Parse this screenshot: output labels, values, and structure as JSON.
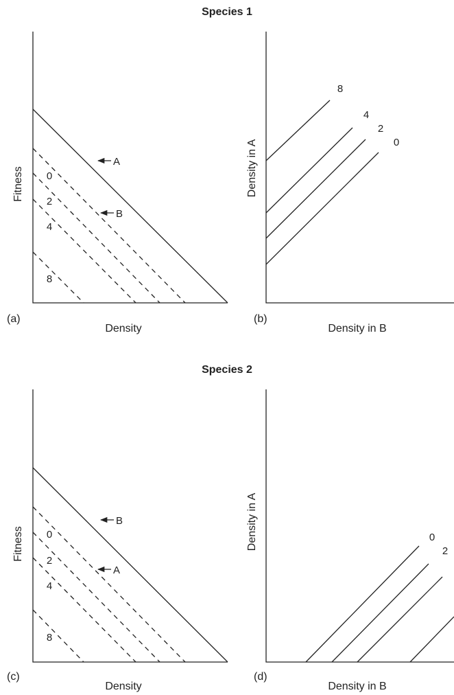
{
  "top": {
    "heading": "Species 1",
    "left": {
      "panel_label": "(a)",
      "xlabel": "Density",
      "ylabel": "Fitness",
      "arrow_labels": [
        "A",
        "B"
      ],
      "curve_labels": [
        "0",
        "2",
        "4",
        "8"
      ]
    },
    "right": {
      "panel_label": "(b)",
      "xlabel": "Density in B",
      "ylabel": "Density in A",
      "curve_labels": [
        "8",
        "4",
        "2",
        "0"
      ]
    }
  },
  "bottom": {
    "heading": "Species 2",
    "left": {
      "panel_label": "(c)",
      "xlabel": "Density",
      "ylabel": "Fitness",
      "arrow_labels": [
        "B",
        "A"
      ],
      "curve_labels": [
        "0",
        "2",
        "4",
        "8"
      ]
    },
    "right": {
      "panel_label": "(d)",
      "xlabel": "Density in B",
      "ylabel": "Density in A",
      "curve_labels": [
        "0",
        "2"
      ]
    }
  }
}
